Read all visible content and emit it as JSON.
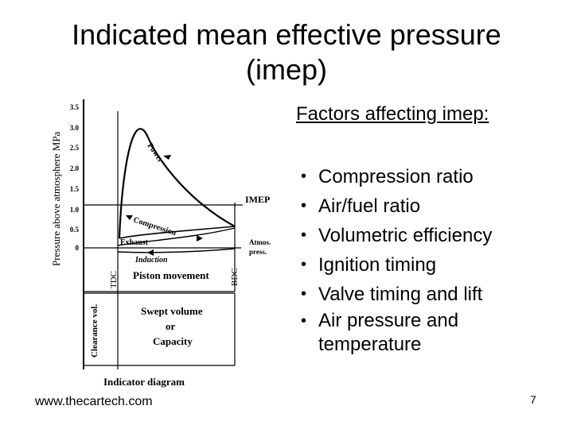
{
  "slide": {
    "title_line1": "Indicated mean effective pressure",
    "title_line2": "(imep)",
    "factors_heading": "Factors affecting imep:",
    "bullet_symbol": "•",
    "bullets": [
      "Compression ratio",
      "Air/fuel ratio",
      "Volumetric efficiency",
      "Ignition timing",
      "Valve timing and lift",
      "Air pressure and temperature"
    ],
    "footer_url": "www.thecartech.com",
    "slide_number": "7"
  },
  "diagram": {
    "y_axis_label": "Pressure above atmosphere MPa",
    "y_ticks": [
      "3.5",
      "3.0",
      "2.5",
      "2.0",
      "1.5",
      "1.0",
      "0.5",
      "0"
    ],
    "imep_label": "IMEP",
    "power_label": "Power",
    "compression_label": "Compression",
    "exhaust_label": "Exhaust",
    "induction_label": "Induction",
    "atmos_label_line1": "Atmos.",
    "atmos_label_line2": "press.",
    "tdc_label": "TDC",
    "bdc_label": "BDC",
    "piston_movement_label": "Piston movement",
    "clearance_label": "Clearance vol.",
    "swept_line1": "Swept volume",
    "swept_line2": "or",
    "swept_line3": "Capacity",
    "caption": "Indicator diagram"
  }
}
